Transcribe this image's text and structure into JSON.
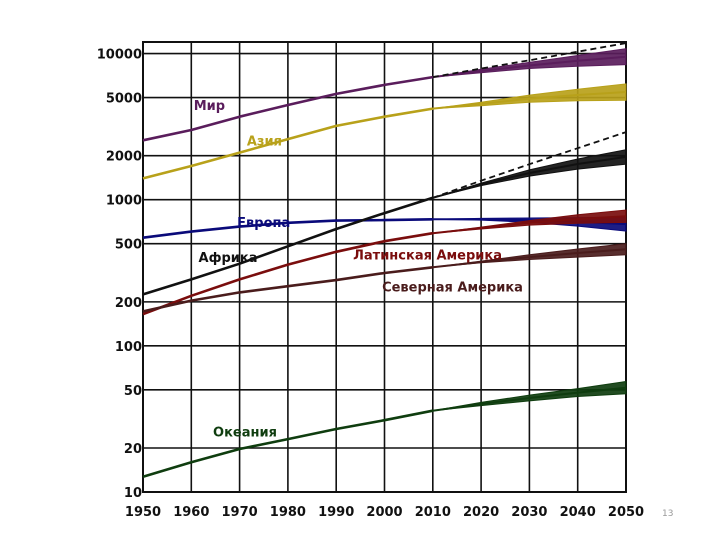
{
  "chart_data": {
    "type": "line",
    "scale": "log",
    "title": "",
    "xlabel": "",
    "ylabel": "",
    "xlim": [
      1950,
      2050
    ],
    "ylim": [
      10,
      12000
    ],
    "x_ticks": [
      1950,
      1960,
      1970,
      1980,
      1990,
      2000,
      2010,
      2020,
      2030,
      2040,
      2050
    ],
    "y_ticks": [
      10000,
      5000,
      2000,
      1000,
      500,
      200,
      100,
      50,
      20,
      10
    ],
    "projection_start": 2010,
    "series": [
      {
        "name": "Мир",
        "color": "#5a1d5c",
        "x": [
          1950,
          1960,
          1970,
          1980,
          1990,
          2000,
          2010
        ],
        "values": [
          2550,
          3000,
          3700,
          4450,
          5300,
          6100,
          6900
        ],
        "projection": {
          "x": [
            2010,
            2020,
            2030,
            2040,
            2050
          ],
          "high": [
            6900,
            7800,
            8700,
            9700,
            10800
          ],
          "low": [
            6900,
            7400,
            7900,
            8200,
            8400
          ],
          "dashed": [
            6900,
            7900,
            9000,
            10300,
            11800
          ]
        }
      },
      {
        "name": "Азия",
        "color": "#b8a11a",
        "x": [
          1950,
          1960,
          1970,
          1980,
          1990,
          2000,
          2010
        ],
        "values": [
          1400,
          1700,
          2100,
          2600,
          3200,
          3700,
          4200
        ],
        "projection": {
          "x": [
            2010,
            2020,
            2030,
            2040,
            2050
          ],
          "high": [
            4200,
            4650,
            5200,
            5700,
            6200
          ],
          "low": [
            4200,
            4400,
            4650,
            4750,
            4800
          ],
          "dashed": null
        }
      },
      {
        "name": "Европа",
        "color": "#0a0a7a",
        "x": [
          1950,
          1960,
          1970,
          1980,
          1990,
          2000,
          2010
        ],
        "values": [
          550,
          605,
          655,
          695,
          720,
          725,
          735
        ],
        "projection": {
          "x": [
            2010,
            2020,
            2030,
            2040,
            2050
          ],
          "high": [
            735,
            745,
            750,
            755,
            760
          ],
          "low": [
            735,
            725,
            700,
            660,
            610
          ],
          "dashed": null
        }
      },
      {
        "name": "Африка",
        "color": "#111111",
        "x": [
          1950,
          1960,
          1970,
          1980,
          1990,
          2000,
          2010
        ],
        "values": [
          225,
          285,
          365,
          480,
          630,
          810,
          1030
        ],
        "projection": {
          "x": [
            2010,
            2020,
            2030,
            2040,
            2050
          ],
          "high": [
            1030,
            1300,
            1600,
            1900,
            2200
          ],
          "low": [
            1030,
            1250,
            1450,
            1620,
            1750
          ],
          "dashed": [
            1030,
            1350,
            1750,
            2250,
            2900
          ]
        }
      },
      {
        "name": "Латинская Америка",
        "color": "#7a0d0d",
        "x": [
          1950,
          1960,
          1970,
          1980,
          1990,
          2000,
          2010
        ],
        "values": [
          165,
          220,
          285,
          360,
          440,
          520,
          590
        ],
        "projection": {
          "x": [
            2010,
            2020,
            2030,
            2040,
            2050
          ],
          "high": [
            590,
            650,
            720,
            790,
            850
          ],
          "low": [
            590,
            630,
            670,
            690,
            700
          ],
          "dashed": null
        }
      },
      {
        "name": "Северная Америка",
        "color": "#4a1c1c",
        "x": [
          1950,
          1960,
          1970,
          1980,
          1990,
          2000,
          2010
        ],
        "values": [
          172,
          204,
          232,
          256,
          282,
          315,
          345
        ],
        "projection": {
          "x": [
            2010,
            2020,
            2030,
            2040,
            2050
          ],
          "high": [
            345,
            380,
            420,
            460,
            500
          ],
          "low": [
            345,
            370,
            390,
            405,
            420
          ],
          "dashed": null
        }
      },
      {
        "name": "Океания",
        "color": "#0f3d0f",
        "x": [
          1950,
          1960,
          1970,
          1980,
          1990,
          2000,
          2010
        ],
        "values": [
          12.7,
          16,
          19.7,
          23,
          27,
          31,
          36
        ],
        "projection": {
          "x": [
            2010,
            2020,
            2030,
            2040,
            2050
          ],
          "high": [
            36,
            41,
            46,
            51,
            57
          ],
          "low": [
            36,
            39,
            42,
            45,
            47
          ],
          "dashed": null
        }
      }
    ]
  },
  "page_number": "13"
}
